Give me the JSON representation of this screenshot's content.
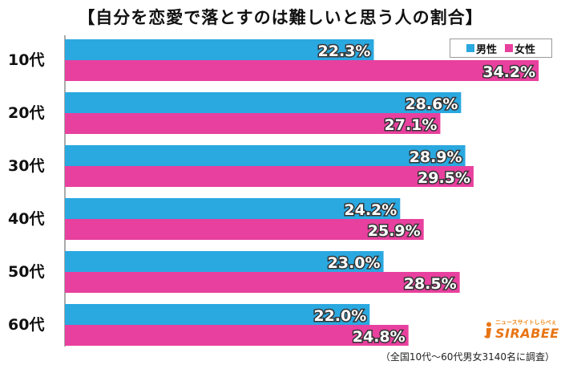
{
  "title": "【自分を恋愛で落とすのは難しいと思う人の割合】",
  "footnote": "（全国10代～60代男女3140名に調査）",
  "logo": {
    "tagline": "ニュースサイトしらべぇ",
    "wordmark": "SIRABEE"
  },
  "colors": {
    "male": "#2aa8e0",
    "female": "#e8409e",
    "label": "#ffffff",
    "label_stroke": "#333333"
  },
  "chart_data": {
    "type": "bar",
    "orientation": "horizontal",
    "categories": [
      "10代",
      "20代",
      "30代",
      "40代",
      "50代",
      "60代"
    ],
    "series": [
      {
        "name": "男性",
        "values": [
          22.3,
          28.6,
          28.9,
          24.2,
          23.0,
          22.0
        ],
        "color": "#2aa8e0"
      },
      {
        "name": "女性",
        "values": [
          34.2,
          27.1,
          29.5,
          25.9,
          28.5,
          24.8
        ],
        "color": "#e8409e"
      }
    ],
    "value_suffix": "%",
    "xlim": [
      0,
      35
    ],
    "grid": false,
    "legend_position": "top-right"
  }
}
